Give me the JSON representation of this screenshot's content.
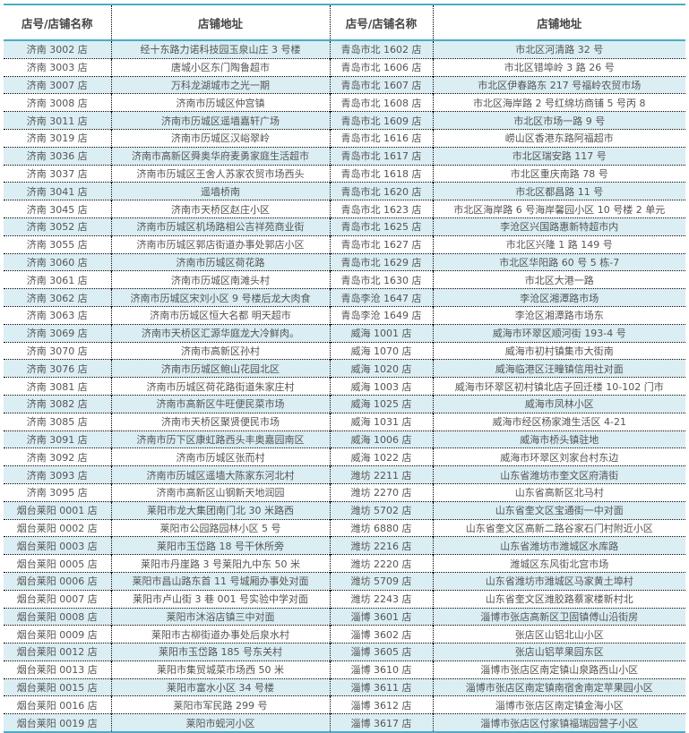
{
  "headers": [
    "店号/店铺名称",
    "店铺地址",
    "店号/店铺名称",
    "店铺地址"
  ],
  "colors": {
    "row_alt": "#daeef3",
    "rule": "#4bacc6"
  },
  "rows": [
    [
      "济南 3002 店",
      "经十东路力诺科技园玉泉山庄 3 号楼",
      "青岛市北 1602 店",
      "市北区河清路 32 号"
    ],
    [
      "济南 3003 店",
      "唐城小区东门陶鲁超市",
      "青岛市北 1606 店",
      "市北区错埠岭 3 路 26 号"
    ],
    [
      "济南 3007 店",
      "万科龙湖城市之光一期",
      "青岛市北 1607 店",
      "市北区伊春路东 217 号福岭农贸市场"
    ],
    [
      "济南 3008 店",
      "济南市历城区仲宫镇",
      "青岛市北 1608 店",
      "市北区海岸路 2 号红绵坊商铺 5 号丙 8"
    ],
    [
      "济南 3011 店",
      "济南市历城区遥墙嘉轩广场",
      "青岛市北 1609 店",
      "市北区市场一路 9 号"
    ],
    [
      "济南 3019 店",
      "济南市历城区汉峪翠岭",
      "青岛市北 1616 店",
      "崂山区香港东路阿福超市"
    ],
    [
      "济南 3036 店",
      "济南市高新区舜奥华府麦勇家庭生活超市",
      "青岛市北 1617 店",
      "市北区瑞安路 117 号"
    ],
    [
      "济南 3037 店",
      "济南市历城区王舍人苏家农贸市场西头",
      "青岛市北 1618 店",
      "市北区重庆南路 78 号"
    ],
    [
      "济南 3041 店",
      "遥墙桥南",
      "青岛市北 1620 店",
      "市北区都昌路 11 号"
    ],
    [
      "济南 3045 店",
      "济南市天桥区赵庄小区",
      "青岛市北 1623 店",
      "市北区海岸路 6 号海岸馨园小区 10 号楼 2 单元"
    ],
    [
      "济南 3052 店",
      "济南市历城区机场路相公吉祥苑商业街",
      "青岛市北 1625 店",
      "李沧区兴国路惠新特超市内"
    ],
    [
      "济南 3055 店",
      "济南市历城区郭店街道办事处郭店小区",
      "青岛市北 1627 店",
      "市北区兴隆 1 路 149 号"
    ],
    [
      "济南 3060 店",
      "济南市历城区荷花路",
      "青岛市北 1629 店",
      "市北区华阳路 60 号 5 栋-7"
    ],
    [
      "济南 3061 店",
      "济南市历城区南滩头村",
      "青岛市北 1630 店",
      "市北区大港一路"
    ],
    [
      "济南 3062 店",
      "济南市历城区宋刘小区 9 号楼后龙大肉食",
      "青岛李沧 1647 店",
      "李沧区湘潭路市场"
    ],
    [
      "济南 3063 店",
      "济南市历城区恒大名都 明天超市",
      "青岛李沧 1649 店",
      "李沧区湘潭路市场东"
    ],
    [
      "济南 3069 店",
      "济南市天桥区汇源华庭龙大冷鲜肉。",
      "威海 1001 店",
      "威海市环翠区顺河街 193-4 号"
    ],
    [
      "济南 3070 店",
      "济南市高新区孙村",
      "威海 1070 店",
      "威海市初村镇集市大街南"
    ],
    [
      "济南 3076 店",
      "济南市历城区鲍山花园北区",
      "威海 1020 店",
      "威海临港区汪疃镇信用社对面"
    ],
    [
      "济南 3081 店",
      "济南市历城区荷花路街道朱家庄村",
      "威海 1003 店",
      "威海市环翠区初村镇北店子回迁楼 10-102 门市"
    ],
    [
      "济南 3082 店",
      "济南市高新区牛旺便民菜市场",
      "威海 1025 店",
      "威海市凤林小区"
    ],
    [
      "济南 3085 店",
      "济南市天桥区聚贤便民市场",
      "威海 1031 店",
      "威海市经区杨家滩生活区 4-21"
    ],
    [
      "济南 3091 店",
      "济南市历下区康虹路西头丰奥嘉园南区",
      "威海 1006 店",
      "威海市桥头镇驻地"
    ],
    [
      "济南 3092 店",
      "济南市历城区张而村",
      "威海 1022 店",
      "威海市环翠区刘家台村东边"
    ],
    [
      "济南 3093 店",
      "济南市历城区遥墙大陈家东河北村",
      "潍坊 2211 店",
      "山东省潍坊市奎文区府清街"
    ],
    [
      "济南 3095 店",
      "济南市高新区山钢新天地润园",
      "潍坊 2270 店",
      "山东省高新区北马村"
    ],
    [
      "烟台莱阳 0001 店",
      "莱阳市龙大集团南门北 30 米路西",
      "潍坊 5702 店",
      "山东省奎文区宝通街一中对面"
    ],
    [
      "烟台莱阳 0002 店",
      "莱阳市公园路园林小区 5 号",
      "潍坊 6880 店",
      "山东省奎文区高新二路谷家石门村附近小区"
    ],
    [
      "烟台莱阳 0003 店",
      "莱阳市玉岱路 18 号干休所旁",
      "潍坊 2216 店",
      "山东省潍坊市潍城区水库路"
    ],
    [
      "烟台莱阳 0005 店",
      "莱阳市丹崖路 3 号莱阳九中东 50 米",
      "潍坊 2220 店",
      "潍城区东风街北宫市场"
    ],
    [
      "烟台莱阳 0006 店",
      "莱阳市昌山路东首 11 号城厢办事处对面",
      "潍坊 5709 店",
      "山东省潍坊市潍城区马家黄土埠村"
    ],
    [
      "烟台莱阳 0007 店",
      "莱阳市卢山街 3 巷 001 号实验中学对面",
      "潍坊 2243 店",
      "山东省奎文区潍胶路蔡家楼新村北"
    ],
    [
      "烟台莱阳 0008 店",
      "莱阳市沐浴店镇三中对面",
      "淄博 3601 店",
      "淄博市张店高新区卫固镇傅山沿街房"
    ],
    [
      "烟台莱阳 0009 店",
      "莱阳市古柳街道办事处后泉水村",
      "淄博 3602 店",
      "张店区山铝北山小区"
    ],
    [
      "烟台莱阳 0012 店",
      "莱阳市玉岱路 185 号东关村",
      "淄博 3605 店",
      "张店山铝苹果园东区"
    ],
    [
      "烟台莱阳 0013 店",
      "莱阳市集贸城菜市场西 50 米",
      "淄博 3610 店",
      "淄博市张店区南定镇山泉路西山小区"
    ],
    [
      "烟台莱阳 0015 店",
      "莱阳市富水小区 34 号楼",
      "淄博 3611 店",
      "淄博市张店区南定镇南宿舍南定苹果园小区"
    ],
    [
      "烟台莱阳 0016 店",
      "莱阳市军民路 299 号",
      "淄博 3612 店",
      "淄博市张店区南定镇金海小区"
    ],
    [
      "烟台莱阳 0019 店",
      "莱阳市蚬河小区",
      "淄博 3617 店",
      "淄博市张店区付家镇福瑞园营子小区"
    ]
  ]
}
